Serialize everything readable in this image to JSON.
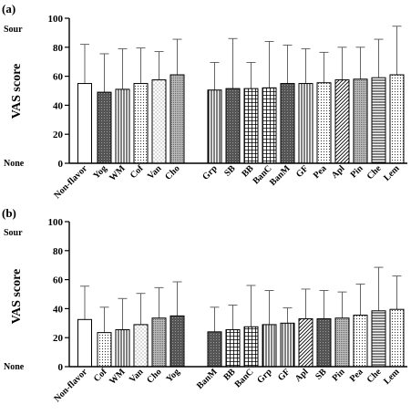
{
  "chart_data": [
    {
      "type": "bar",
      "panel_label": "(a)",
      "ylabel": "VAS score",
      "y_top_label": "Sour",
      "y_bottom_label": "None",
      "ylim": [
        0,
        100
      ],
      "yticks": [
        0,
        20,
        40,
        60,
        80,
        100
      ],
      "categories": [
        "Non-flavor",
        "Yog",
        "WM",
        "Cof",
        "Van",
        "Cho",
        "Grp",
        "SB",
        "BB",
        "BanC",
        "BanM",
        "GF",
        "Pea",
        "Apl",
        "Pin",
        "Che",
        "Lem"
      ],
      "groups": [
        [
          0
        ],
        [
          1,
          2,
          3,
          4,
          5
        ],
        [
          6,
          7,
          8,
          9,
          10,
          11,
          12,
          13,
          14,
          15,
          16
        ]
      ],
      "values": [
        55,
        49,
        51,
        55,
        57.5,
        61,
        50.5,
        51.5,
        51.5,
        52,
        55,
        55,
        55.5,
        57.5,
        58,
        59,
        61
      ],
      "errors": [
        27,
        26.5,
        28,
        24.5,
        19.5,
        24.5,
        19,
        34.5,
        18,
        32,
        26.5,
        24,
        21,
        22.5,
        22,
        26.5,
        33.5
      ],
      "patterns": [
        "none",
        "dark",
        "vert",
        "dots",
        "sparse",
        "dense",
        "vert",
        "dark",
        "grid",
        "grid",
        "dark",
        "vert",
        "dots",
        "diag",
        "dense",
        "horiz",
        "dots"
      ]
    },
    {
      "type": "bar",
      "panel_label": "(b)",
      "ylabel": "VAS score",
      "y_top_label": "Sour",
      "y_bottom_label": "None",
      "ylim": [
        0,
        100
      ],
      "yticks": [
        0,
        20,
        40,
        60,
        80,
        100
      ],
      "categories": [
        "Non-flavor",
        "Cof",
        "WM",
        "Van",
        "Cho",
        "Yog",
        "BanM",
        "BB",
        "BanC",
        "Grp",
        "GF",
        "Apl",
        "SB",
        "Pin",
        "Pea",
        "Che",
        "Lem"
      ],
      "groups": [
        [
          0
        ],
        [
          1,
          2,
          3,
          4,
          5
        ],
        [
          6,
          7,
          8,
          9,
          10,
          11,
          12,
          13,
          14,
          15,
          16
        ]
      ],
      "values": [
        32.5,
        23.5,
        25.5,
        29,
        33.5,
        35,
        24,
        25.5,
        27.5,
        29,
        30,
        33,
        33,
        33.5,
        35.5,
        38.5,
        39.5
      ],
      "errors": [
        23,
        17.5,
        21.5,
        21.5,
        21,
        23.5,
        17,
        17,
        28.5,
        23.5,
        10.5,
        20.5,
        19.5,
        18,
        21.5,
        30,
        23
      ],
      "patterns": [
        "none",
        "dots",
        "vert",
        "sparse",
        "dense",
        "dark",
        "dark",
        "grid",
        "grid",
        "vert",
        "vert",
        "diag",
        "dark",
        "dense",
        "dots",
        "horiz",
        "dots"
      ]
    }
  ]
}
